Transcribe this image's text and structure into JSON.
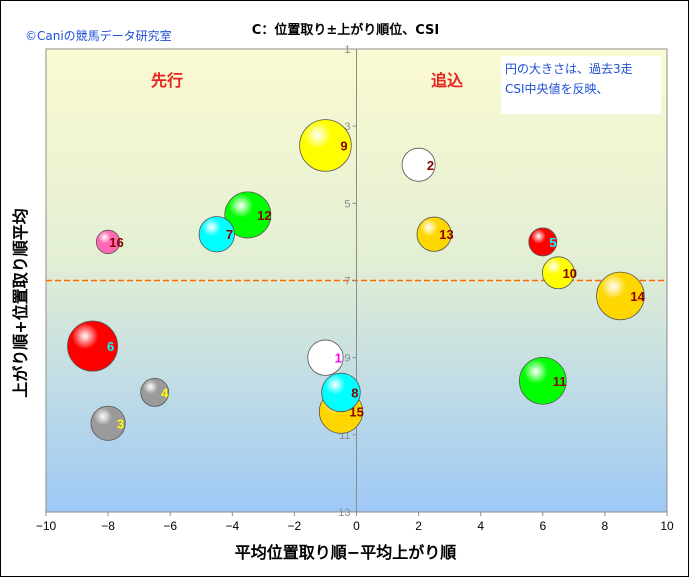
{
  "credit": "©Caniの競馬データ研究室",
  "chart_data": {
    "type": "scatter",
    "title": "C：位置取り±上がり順位、CSI",
    "xlabel": "平均位置取り順−平均上がり順",
    "ylabel": "上がり順+位置取り順平均",
    "xlim": [
      -10,
      10
    ],
    "ylim": [
      13,
      1
    ],
    "y_reversed": true,
    "xticks": [
      -10,
      -8,
      -6,
      -4,
      -2,
      0,
      2,
      4,
      6,
      8,
      10
    ],
    "yticks": [
      1,
      3,
      5,
      7,
      9,
      11,
      13
    ],
    "reference_line_y": 7,
    "region_labels": [
      "先行",
      "追込"
    ],
    "note_lines": [
      "円の大きさは、過去3走",
      "CSI中央値を反映、"
    ],
    "points": [
      {
        "label": "1",
        "x": -1.0,
        "y": 9.0,
        "size": 1.6,
        "color": "#ffffff",
        "label_color": "#ff00ff"
      },
      {
        "label": "2",
        "x": 2.0,
        "y": 4.0,
        "size": 1.4,
        "color": "#ffffff",
        "label_color": "#8b0000"
      },
      {
        "label": "3",
        "x": -8.0,
        "y": 10.7,
        "size": 1.5,
        "color": "#9a9a9a",
        "label_color": "#ffff00"
      },
      {
        "label": "4",
        "x": -6.5,
        "y": 9.9,
        "size": 1.0,
        "color": "#9a9a9a",
        "label_color": "#ffff00"
      },
      {
        "label": "5",
        "x": 6.0,
        "y": 6.0,
        "size": 1.0,
        "color": "#ff0000",
        "label_color": "#00ffff"
      },
      {
        "label": "6",
        "x": -8.5,
        "y": 8.7,
        "size": 3.2,
        "color": "#ff0000",
        "label_color": "#00ffff"
      },
      {
        "label": "7",
        "x": -4.5,
        "y": 5.8,
        "size": 1.6,
        "color": "#00ffff",
        "label_color": "#8b0000"
      },
      {
        "label": "8",
        "x": -0.5,
        "y": 9.9,
        "size": 1.9,
        "color": "#00ffff",
        "label_color": "#8b0000"
      },
      {
        "label": "9",
        "x": -1.0,
        "y": 3.5,
        "size": 3.4,
        "color": "#ffff00",
        "label_color": "#8b0000"
      },
      {
        "label": "10",
        "x": 6.5,
        "y": 6.8,
        "size": 1.3,
        "color": "#ffff00",
        "label_color": "#8b0000"
      },
      {
        "label": "11",
        "x": 6.0,
        "y": 9.6,
        "size": 2.8,
        "color": "#00ff00",
        "label_color": "#8b0000"
      },
      {
        "label": "12",
        "x": -3.5,
        "y": 5.3,
        "size": 2.7,
        "color": "#00ff00",
        "label_color": "#8b0000"
      },
      {
        "label": "13",
        "x": 2.5,
        "y": 5.8,
        "size": 1.5,
        "color": "#ffd700",
        "label_color": "#8b0000"
      },
      {
        "label": "14",
        "x": 8.5,
        "y": 7.4,
        "size": 2.9,
        "color": "#ffd700",
        "label_color": "#8b0000"
      },
      {
        "label": "15",
        "x": -0.5,
        "y": 10.4,
        "size": 2.4,
        "color": "#ffd700",
        "label_color": "#8b0000"
      },
      {
        "label": "16",
        "x": -8.0,
        "y": 6.0,
        "size": 0.7,
        "color": "#ff69b4",
        "label_color": "#8b0000"
      }
    ]
  },
  "colors": {
    "region_label": "#e8231e",
    "reference_line": "#ff6a00",
    "gradient_top": "#fbfad0",
    "gradient_bottom": "#9ec9f6"
  }
}
